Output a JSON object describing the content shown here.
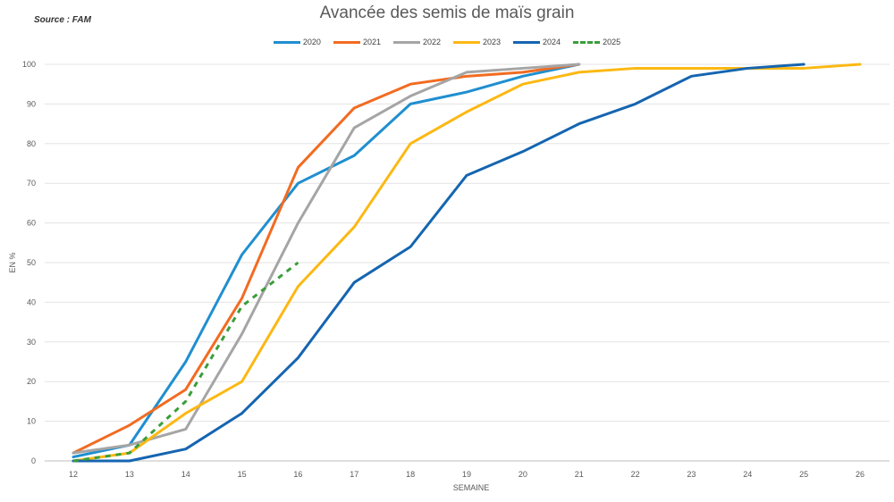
{
  "source": "Source : FAM",
  "chart_data": {
    "type": "line",
    "title": "Avancée des semis de maïs grain",
    "xlabel": "SEMAINE",
    "ylabel": "EN %",
    "x": [
      12,
      13,
      14,
      15,
      16,
      17,
      18,
      19,
      20,
      21,
      22,
      23,
      24,
      25,
      26
    ],
    "xlim": [
      12,
      26
    ],
    "ylim": [
      0,
      100
    ],
    "yticks": [
      0,
      10,
      20,
      30,
      40,
      50,
      60,
      70,
      80,
      90,
      100
    ],
    "grid": true,
    "legend_position": "top",
    "series": [
      {
        "name": "2020",
        "color": "#1f8fd0",
        "dashed": false,
        "values": [
          1,
          4,
          25,
          52,
          70,
          77,
          90,
          93,
          97,
          100,
          null,
          null,
          null,
          null,
          null
        ]
      },
      {
        "name": "2021",
        "color": "#f26b21",
        "dashed": false,
        "values": [
          2,
          9,
          18,
          41,
          74,
          89,
          95,
          97,
          98,
          100,
          null,
          null,
          null,
          null,
          null
        ]
      },
      {
        "name": "2022",
        "color": "#a5a5a5",
        "dashed": false,
        "values": [
          2,
          4,
          8,
          32,
          60,
          84,
          92,
          98,
          99,
          100,
          null,
          null,
          null,
          null,
          null
        ]
      },
      {
        "name": "2023",
        "color": "#fcb813",
        "dashed": false,
        "values": [
          0,
          2,
          12,
          20,
          44,
          59,
          80,
          88,
          95,
          98,
          99,
          99,
          99,
          99,
          100
        ]
      },
      {
        "name": "2024",
        "color": "#1565b0",
        "dashed": false,
        "values": [
          0,
          0,
          3,
          12,
          26,
          45,
          54,
          72,
          78,
          85,
          90,
          97,
          99,
          100,
          null
        ]
      },
      {
        "name": "2025",
        "color": "#3a9e3a",
        "dashed": true,
        "values": [
          0,
          2,
          15,
          39,
          50,
          null,
          null,
          null,
          null,
          null,
          null,
          null,
          null,
          null,
          null
        ]
      }
    ]
  }
}
